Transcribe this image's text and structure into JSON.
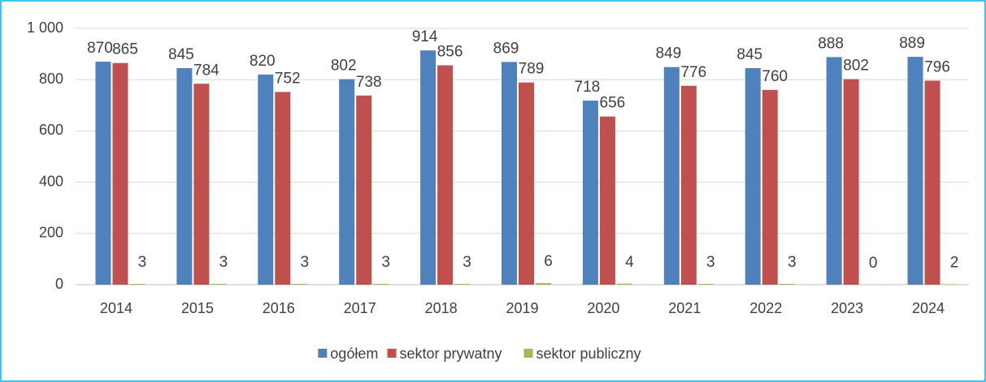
{
  "chart_data": {
    "type": "bar",
    "categories": [
      "2014",
      "2015",
      "2016",
      "2017",
      "2018",
      "2019",
      "2020",
      "2021",
      "2022",
      "2023",
      "2024"
    ],
    "series": [
      {
        "name": "ogółem",
        "color": "#4f81bd",
        "values": [
          870,
          845,
          820,
          802,
          914,
          869,
          718,
          849,
          845,
          888,
          889
        ]
      },
      {
        "name": "sektor prywatny",
        "color": "#c0504d",
        "values": [
          865,
          784,
          752,
          738,
          856,
          789,
          656,
          776,
          760,
          802,
          796
        ]
      },
      {
        "name": "sektor publiczny",
        "color": "#9bbb59",
        "values": [
          3,
          3,
          3,
          3,
          3,
          6,
          4,
          3,
          3,
          0,
          2
        ]
      }
    ],
    "ylim": [
      0,
      1000
    ],
    "yticks": [
      0,
      200,
      400,
      600,
      800,
      {
        "value": 1000,
        "label": "1 000"
      }
    ],
    "grid": true,
    "legend": "bottom"
  }
}
